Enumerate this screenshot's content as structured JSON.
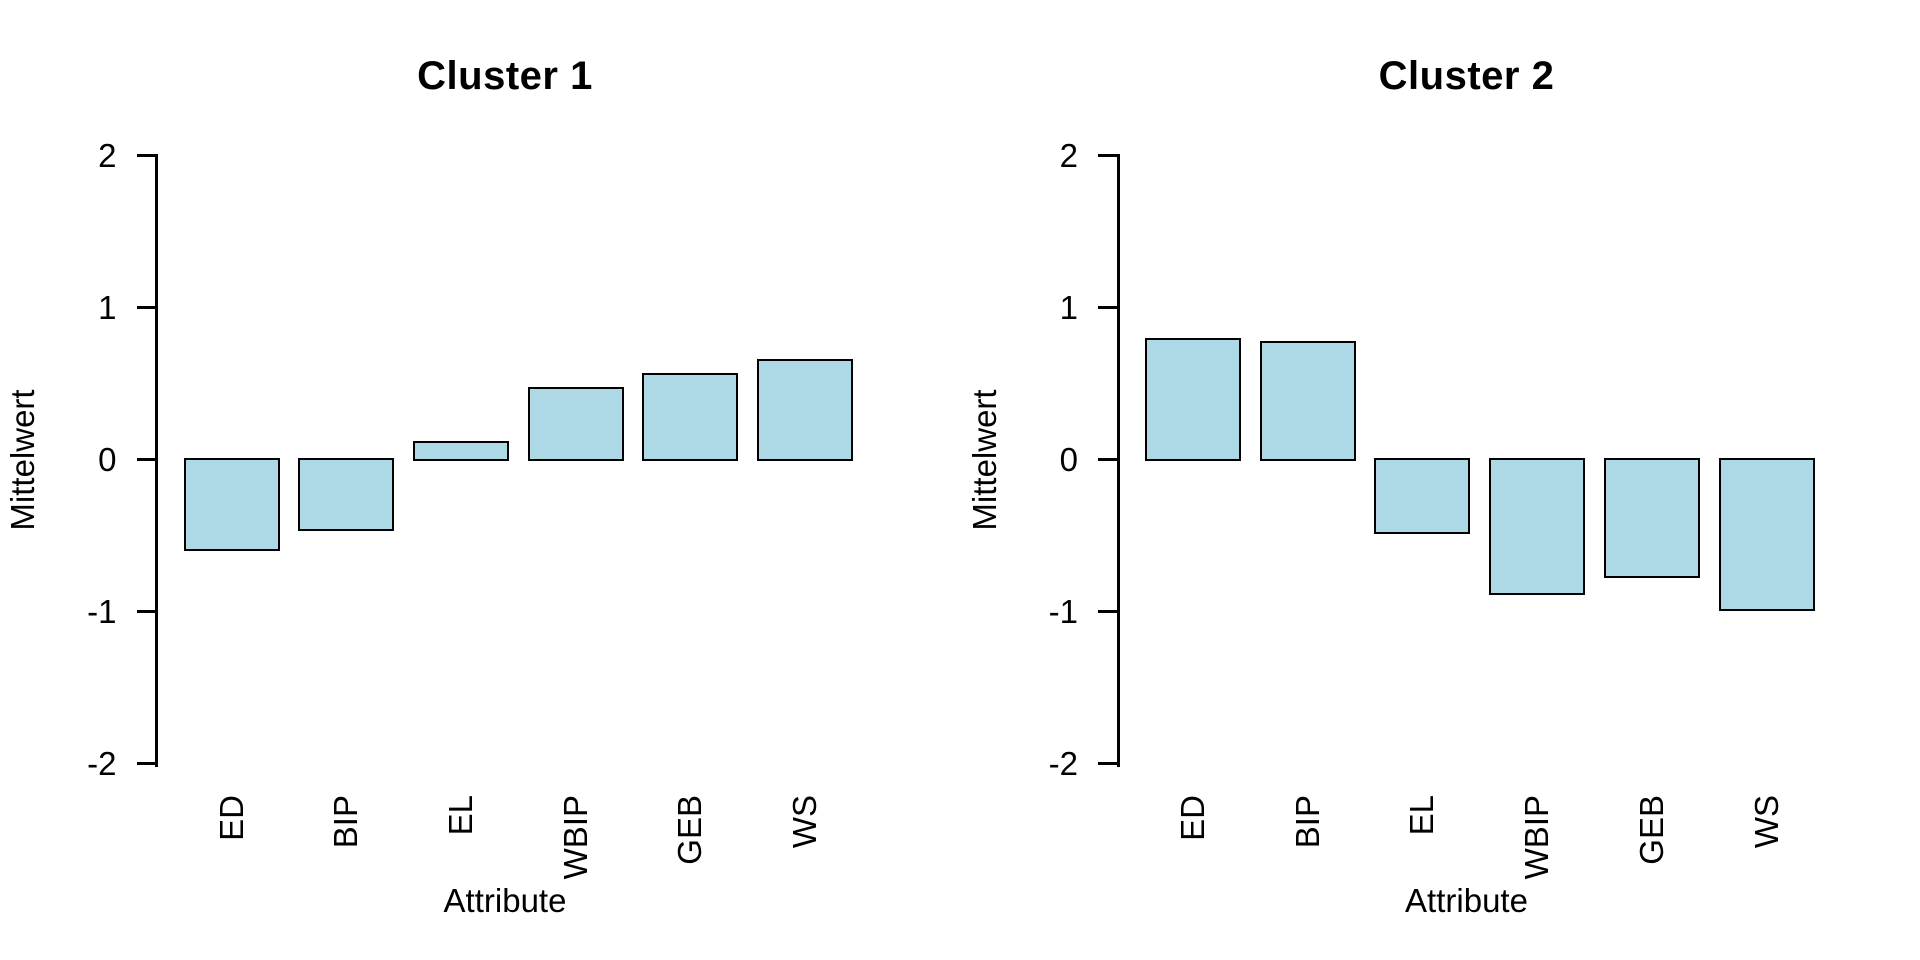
{
  "figure": {
    "background_color": "#ffffff",
    "bar_fill_color": "#ADD8E6",
    "bar_border_color": "#000000",
    "axis_color": "#000000",
    "text_color": "#000000"
  },
  "chart_data": [
    {
      "type": "bar",
      "title": "Cluster 1",
      "xlabel": "Attribute",
      "ylabel": "Mittelwert",
      "categories": [
        "ED",
        "BIP",
        "EL",
        "WBIP",
        "GEB",
        "WS"
      ],
      "values": [
        -0.59,
        -0.46,
        0.11,
        0.47,
        0.56,
        0.65
      ],
      "ylim": [
        -2,
        2
      ],
      "yticks": [
        2,
        1,
        0,
        -1,
        -2
      ],
      "ytick_labels": [
        "2",
        "1",
        "0",
        "-1",
        "-2"
      ],
      "grid": false,
      "legend_position": "none"
    },
    {
      "type": "bar",
      "title": "Cluster 2",
      "xlabel": "Attribute",
      "ylabel": "Mittelwert",
      "categories": [
        "ED",
        "BIP",
        "EL",
        "WBIP",
        "GEB",
        "WS"
      ],
      "values": [
        0.79,
        0.77,
        -0.48,
        -0.88,
        -0.77,
        -0.99
      ],
      "ylim": [
        -2,
        2
      ],
      "yticks": [
        2,
        1,
        0,
        -1,
        -2
      ],
      "ytick_labels": [
        "2",
        "1",
        "0",
        "-1",
        "-2"
      ],
      "grid": false,
      "legend_position": "none"
    }
  ]
}
